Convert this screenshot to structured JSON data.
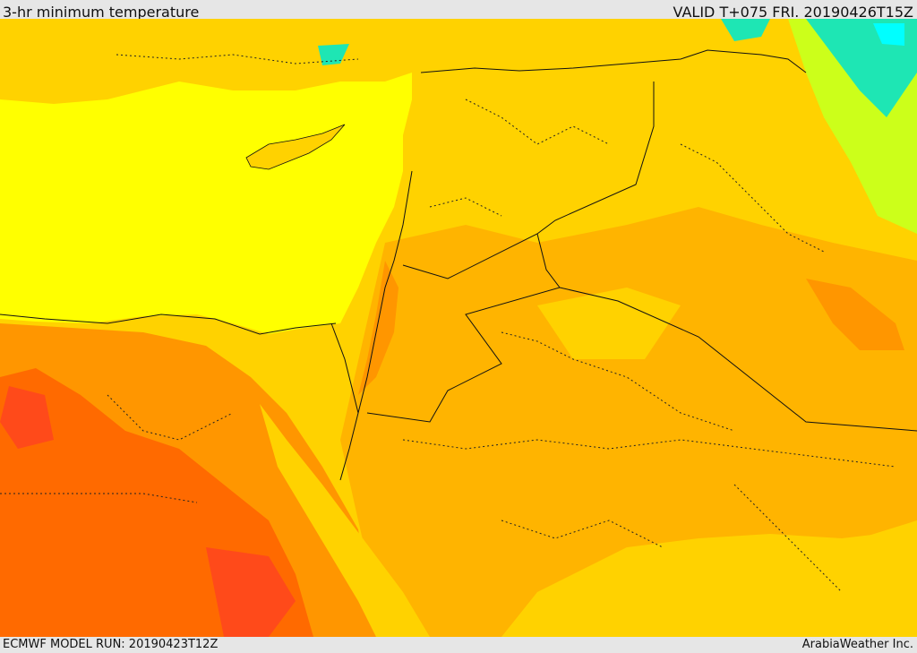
{
  "header": {
    "title": "3-hr minimum temperature",
    "valid": "VALID T+075 FRI. 20190426T15Z"
  },
  "footer": {
    "model_run": "ECMWF MODEL RUN: 20190423T12Z",
    "credit": "ArabiaWeather Inc."
  },
  "map": {
    "sea_color": "#ffff00",
    "land_color": "#ffd200",
    "warm_color": "#ffb400",
    "hot_color": "#ff9600",
    "hotter_color": "#ff6a00",
    "hottest_color": "#ff4a1a",
    "cool_color": "#ccff1a",
    "cold_color": "#1ee6b4",
    "coldest_color": "#00ffff",
    "border_color": "#111111"
  }
}
